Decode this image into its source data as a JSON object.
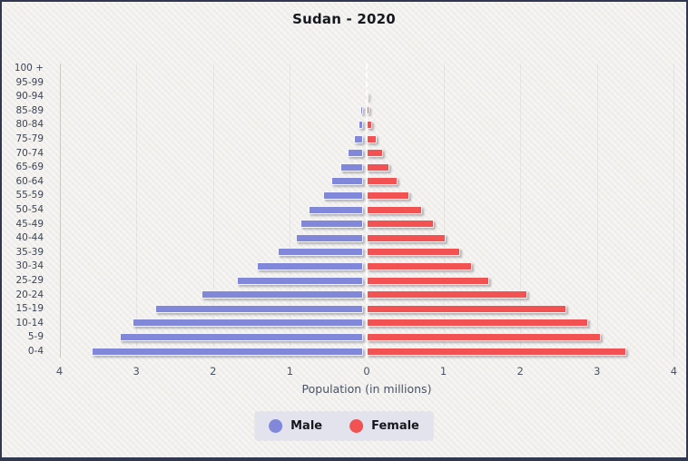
{
  "page": {
    "title": "Sudan - 2020"
  },
  "chart_data": {
    "type": "bar",
    "variant": "population-pyramid",
    "title": "Sudan - 2020",
    "xlabel": "Population (in millions)",
    "population_unit": "millions",
    "x_tick_labels": [
      "4",
      "3",
      "2",
      "1",
      "0",
      "1",
      "2",
      "3",
      "4"
    ],
    "xlim_each_side": [
      0,
      4
    ],
    "grid": "faint-vertical",
    "legend_position": "bottom",
    "age_groups": [
      "100 +",
      "95-99",
      "90-94",
      "85-89",
      "80-84",
      "75-79",
      "70-74",
      "65-69",
      "60-64",
      "55-59",
      "50-54",
      "45-49",
      "40-44",
      "35-39",
      "30-34",
      "25-29",
      "20-24",
      "15-19",
      "10-14",
      "5-9",
      "0-4"
    ],
    "series": [
      {
        "name": "Male",
        "side": "left",
        "color": "#8187d9",
        "values": [
          0.001,
          0.002,
          0.008,
          0.03,
          0.06,
          0.12,
          0.2,
          0.29,
          0.41,
          0.52,
          0.71,
          0.81,
          0.88,
          1.11,
          1.38,
          1.64,
          2.11,
          2.71,
          3.0,
          3.17,
          3.53
        ]
      },
      {
        "name": "Female",
        "side": "right",
        "color": "#f25252",
        "values": [
          0.001,
          0.003,
          0.011,
          0.04,
          0.07,
          0.13,
          0.21,
          0.3,
          0.4,
          0.55,
          0.72,
          0.87,
          1.03,
          1.22,
          1.37,
          1.59,
          2.09,
          2.6,
          2.89,
          3.05,
          3.38
        ]
      }
    ],
    "colors": {
      "male": "#8187d9",
      "female": "#f25252",
      "background": "#f0efec",
      "frame_border": "#31374f",
      "legend_background": "#e3e3ed",
      "axis_text": "#4a5462",
      "age_label_text": "#3d4554",
      "axis_line": "#c9c9c5",
      "center_dashed_line": "#ffffff"
    }
  }
}
